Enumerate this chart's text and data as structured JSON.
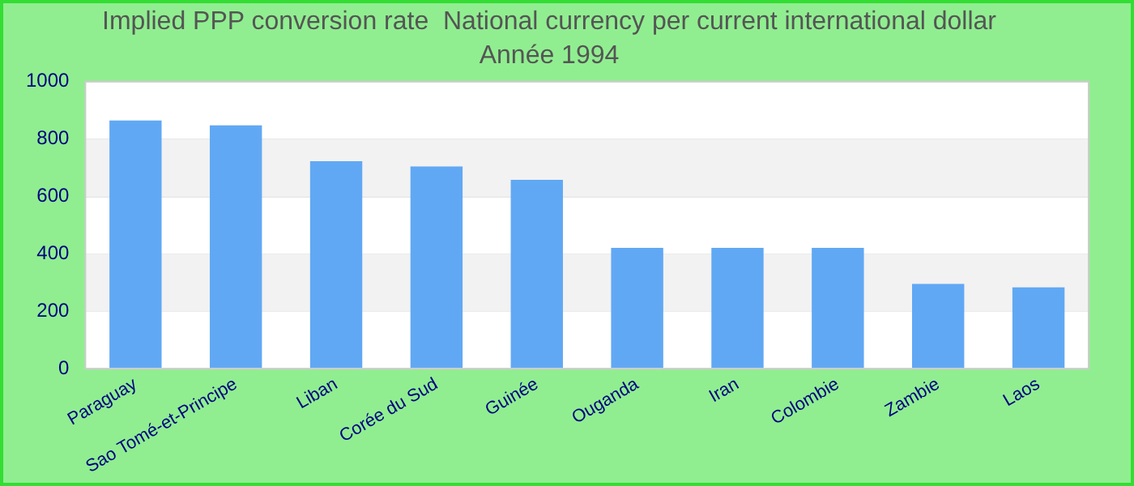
{
  "chart_data": {
    "type": "bar",
    "title": "Implied PPP conversion rate  National currency per current international dollar",
    "subtitle": "Année 1994",
    "categories": [
      "Paraguay",
      "Sao Tomé-et-Principe",
      "Liban",
      "Corée du Sud",
      "Guinée",
      "Ouganda",
      "Iran",
      "Colombie",
      "Zambie",
      "Laos"
    ],
    "values": [
      865,
      848,
      723,
      705,
      658,
      421,
      421,
      421,
      296,
      284
    ],
    "color": "#61a8f4",
    "ylim": [
      0,
      1000
    ],
    "yticks": [
      0,
      200,
      400,
      600,
      800,
      1000
    ],
    "grid": "y"
  }
}
